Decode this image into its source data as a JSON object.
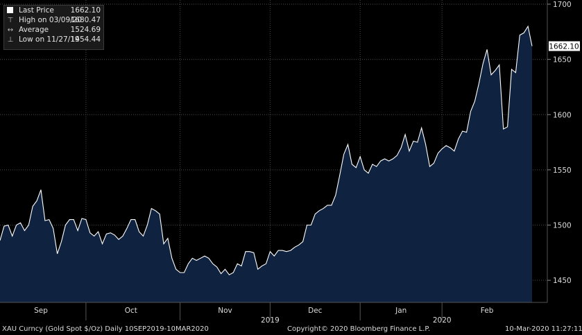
{
  "legend": {
    "items": [
      {
        "label": "Last Price",
        "value": "1662.10",
        "icon": "white-square-icon"
      },
      {
        "label": "High on 03/09/20",
        "value": "1680.47",
        "icon": "high-marker-icon"
      },
      {
        "label": "Average",
        "value": "1524.69",
        "icon": "average-line-icon"
      },
      {
        "label": "Low on 11/27/19",
        "value": "1454.44",
        "icon": "low-marker-icon"
      }
    ]
  },
  "last_price_tag": "1662.10",
  "footer": {
    "left": "XAU Curncy (Gold Spot  $/Oz)  Daily 10SEP2019-10MAR2020",
    "center": "Copyright© 2020 Bloomberg Finance L.P.",
    "right": "10-Mar-2020 11:27:11"
  },
  "colors": {
    "background": "#000000",
    "area_fill": "#0f2340",
    "line": "#ffffff",
    "tag_bg": "#ffffff"
  },
  "chart_data": {
    "type": "area",
    "ylim": [
      1430,
      1700
    ],
    "y_ticks": [
      1450,
      1500,
      1550,
      1600,
      1650,
      1700
    ],
    "month_labels": [
      "Sep",
      "Oct",
      "Nov",
      "Dec",
      "Jan",
      "Feb"
    ],
    "year_labels": [
      "2019",
      "2020"
    ],
    "grid": true,
    "series": [
      {
        "values": [
          1486,
          1499,
          1500,
          1490,
          1500,
          1502,
          1495,
          1500,
          1517,
          1522,
          1532,
          1504,
          1505,
          1497,
          1474,
          1485,
          1500,
          1505,
          1505,
          1495,
          1506,
          1505,
          1493,
          1490,
          1494,
          1483,
          1492,
          1493,
          1491,
          1487,
          1490,
          1497,
          1505,
          1505,
          1494,
          1490,
          1500,
          1515,
          1513,
          1510,
          1483,
          1488,
          1470,
          1460,
          1457,
          1457,
          1465,
          1470,
          1468,
          1470,
          1472,
          1470,
          1465,
          1462,
          1456,
          1460,
          1455,
          1457,
          1465,
          1463,
          1476,
          1476,
          1475,
          1460,
          1463,
          1465,
          1476,
          1472,
          1477,
          1477,
          1476,
          1477,
          1480,
          1482,
          1485,
          1500,
          1500,
          1510,
          1513,
          1515,
          1518,
          1518,
          1527,
          1545,
          1564,
          1573,
          1555,
          1552,
          1562,
          1550,
          1547,
          1555,
          1553,
          1558,
          1560,
          1558,
          1560,
          1563,
          1570,
          1582,
          1567,
          1576,
          1575,
          1588,
          1573,
          1553,
          1556,
          1565,
          1569,
          1572,
          1570,
          1567,
          1578,
          1585,
          1584,
          1603,
          1612,
          1628,
          1646,
          1659,
          1636,
          1640,
          1645,
          1587,
          1589,
          1641,
          1638,
          1672,
          1674,
          1680,
          1662
        ]
      }
    ]
  }
}
